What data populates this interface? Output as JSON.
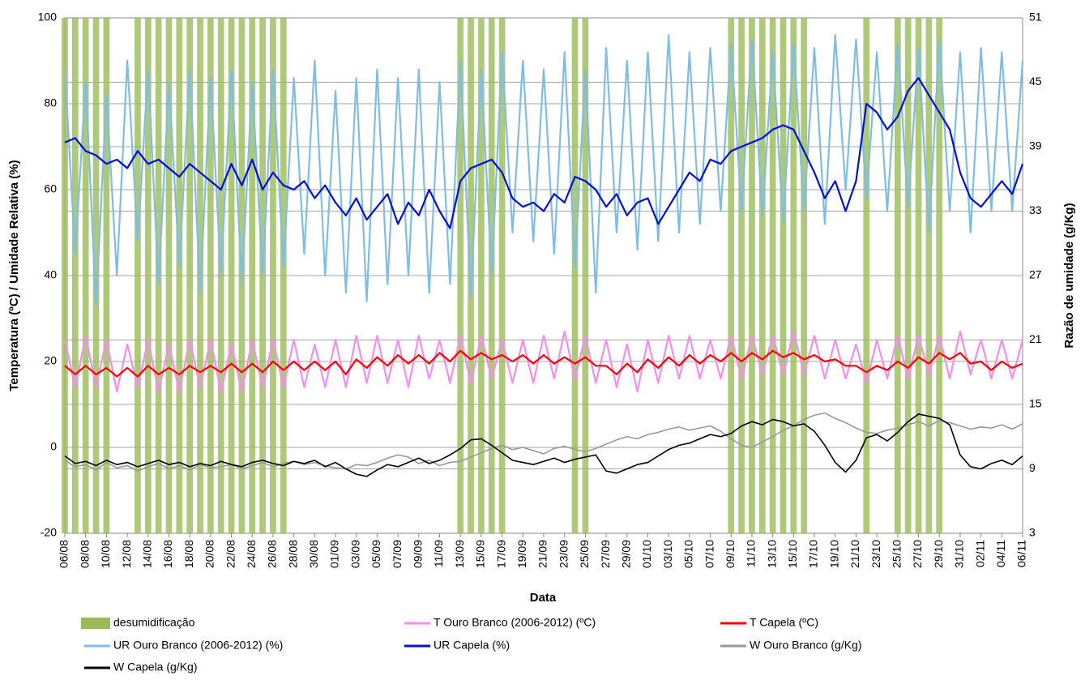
{
  "chart_data": {
    "type": "line",
    "ylabel": "Temperatura (ºC) / Umidade Relativa (%)",
    "y2label": "Razão de umidade (g/Kg)",
    "xlabel": "Data",
    "categories": [
      "06/08",
      null,
      "08/08",
      null,
      "10/08",
      null,
      "12/08",
      null,
      "14/08",
      null,
      "16/08",
      null,
      "18/08",
      null,
      "20/08",
      null,
      "22/08",
      null,
      "24/08",
      null,
      "26/08",
      null,
      "28/08",
      null,
      "30/08",
      null,
      "01/09",
      null,
      "03/09",
      null,
      "05/09",
      null,
      "07/09",
      null,
      "09/09",
      null,
      "11/09",
      null,
      "13/09",
      null,
      "15/09",
      null,
      "17/09",
      null,
      "19/09",
      null,
      "21/09",
      null,
      "23/09",
      null,
      "25/09",
      null,
      "27/09",
      null,
      "29/09",
      null,
      "01/10",
      null,
      "03/10",
      null,
      "05/10",
      null,
      "07/10",
      null,
      "09/10",
      null,
      "11/10",
      null,
      "13/10",
      null,
      "15/10",
      null,
      "17/10",
      null,
      "19/10",
      null,
      "21/10",
      null,
      "23/10",
      null,
      "25/10",
      null,
      "27/10",
      null,
      "29/10",
      null,
      "31/10",
      null,
      "02/11",
      null,
      "04/11",
      null,
      "06/11"
    ],
    "ylim": [
      -20,
      100
    ],
    "yticks": [
      -20,
      0,
      20,
      40,
      60,
      80,
      100
    ],
    "y2lim": [
      3,
      51
    ],
    "y2ticks": [
      3,
      9,
      15,
      21,
      27,
      33,
      39,
      45,
      51
    ],
    "grid": true,
    "series": [
      {
        "name": "desumidificação",
        "type": "bar",
        "color": "#9bbb59",
        "values": [
          100,
          100,
          100,
          100,
          100,
          null,
          null,
          100,
          100,
          100,
          100,
          100,
          100,
          100,
          100,
          100,
          100,
          100,
          100,
          100,
          100,
          100,
          null,
          null,
          null,
          null,
          null,
          null,
          null,
          null,
          null,
          null,
          null,
          null,
          null,
          null,
          null,
          null,
          100,
          100,
          100,
          100,
          100,
          null,
          null,
          null,
          null,
          null,
          null,
          100,
          100,
          null,
          null,
          null,
          null,
          null,
          null,
          null,
          null,
          null,
          null,
          null,
          null,
          null,
          100,
          100,
          100,
          100,
          100,
          100,
          100,
          100,
          null,
          null,
          null,
          null,
          null,
          100,
          null,
          null,
          100,
          100,
          100,
          100,
          100,
          null,
          null,
          null,
          null,
          null,
          null,
          null,
          null
        ]
      },
      {
        "name": "T Ouro Branco (2006-2012) (ºC)",
        "color": "#f58cf0",
        "values": [
          25,
          14,
          26,
          14,
          25,
          13,
          24,
          14,
          25,
          13,
          24,
          13,
          25,
          14,
          25,
          13,
          24,
          13,
          25,
          14,
          25,
          14,
          25,
          14,
          24,
          14,
          25,
          14,
          26,
          15,
          26,
          15,
          25,
          14,
          26,
          16,
          25,
          15,
          26,
          15,
          26,
          16,
          25,
          15,
          25,
          15,
          26,
          16,
          27,
          16,
          26,
          15,
          25,
          14,
          24,
          13,
          25,
          15,
          26,
          16,
          26,
          16,
          25,
          16,
          26,
          16,
          26,
          17,
          26,
          17,
          27,
          17,
          26,
          16,
          25,
          16,
          24,
          15,
          25,
          16,
          26,
          16,
          26,
          17,
          26,
          16,
          27,
          17,
          25,
          16,
          25,
          16,
          25
        ]
      },
      {
        "name": "T Capela (ºC)",
        "color": "#ff0000",
        "values": [
          19,
          17,
          19,
          17,
          18.5,
          16.5,
          18.5,
          16.5,
          19,
          17,
          18.5,
          17,
          19,
          17.5,
          19,
          17.5,
          19.5,
          17.5,
          19.5,
          17.5,
          20,
          18,
          20,
          18,
          20,
          18,
          20,
          17,
          20.5,
          18.5,
          21,
          19,
          21.5,
          19.5,
          21.5,
          19.5,
          22,
          20,
          22.5,
          20.5,
          22,
          20.5,
          21.5,
          20,
          21.5,
          19.5,
          21.5,
          19.5,
          21,
          19.5,
          21,
          19,
          19,
          17,
          19.5,
          17.5,
          20.5,
          18.5,
          21,
          19,
          21.5,
          19.5,
          21.5,
          20,
          22,
          20,
          22,
          20.5,
          22.5,
          21,
          22,
          20.5,
          21.5,
          20,
          20.5,
          19,
          19,
          17.5,
          19,
          18,
          20,
          18.5,
          21,
          19.5,
          22,
          20.5,
          22,
          19.5,
          20,
          18,
          20,
          18.5,
          19.5
        ]
      },
      {
        "name": "UR Ouro Branco (2006-2012) (%)",
        "color": "#7fbde6",
        "values": [
          88,
          45,
          85,
          33,
          82,
          40,
          90,
          48,
          88,
          38,
          85,
          42,
          88,
          36,
          86,
          40,
          88,
          38,
          85,
          40,
          88,
          42,
          86,
          45,
          90,
          40,
          83,
          36,
          86,
          34,
          88,
          38,
          86,
          40,
          88,
          36,
          85,
          38,
          90,
          35,
          88,
          40,
          92,
          50,
          90,
          48,
          88,
          45,
          92,
          42,
          88,
          36,
          93,
          50,
          90,
          46,
          92,
          48,
          96,
          50,
          92,
          52,
          93,
          55,
          94,
          55,
          95,
          54,
          92,
          52,
          94,
          55,
          93,
          52,
          96,
          60,
          95,
          58,
          92,
          55,
          94,
          56,
          93,
          50,
          95,
          55,
          92,
          50,
          93,
          55,
          92,
          55,
          90
        ]
      },
      {
        "name": "UR Capela (%)",
        "color": "#0010d8",
        "values": [
          71,
          72,
          69,
          68,
          66,
          67,
          65,
          69,
          66,
          67,
          65,
          63,
          66,
          64,
          62,
          60,
          66,
          61,
          67,
          60,
          64,
          61,
          60,
          62,
          58,
          61,
          57,
          54,
          58,
          53,
          56,
          59,
          52,
          57,
          54,
          60,
          55,
          51,
          62,
          65,
          66,
          67,
          64,
          58,
          56,
          57,
          55,
          59,
          57,
          63,
          62,
          60,
          56,
          59,
          54,
          57,
          58,
          52,
          56,
          60,
          64,
          62,
          67,
          66,
          69,
          70,
          71,
          72,
          74,
          75,
          74,
          69,
          64,
          58,
          62,
          55,
          62,
          80,
          78,
          74,
          77,
          83,
          86,
          82,
          78,
          74,
          64,
          58,
          56,
          59,
          62,
          59,
          66
        ]
      },
      {
        "name": "W Ouro Branco (g/Kg)",
        "axis": "y2",
        "color": "#999999",
        "values": [
          9.8,
          9.2,
          9.4,
          8.9,
          9.6,
          9.1,
          9.3,
          8.8,
          9.2,
          9.5,
          9.0,
          9.3,
          8.9,
          9.4,
          9.1,
          9.2,
          9.4,
          9.0,
          9.3,
          9.6,
          9.2,
          9.5,
          9.7,
          9.4,
          9.6,
          9.3,
          9.1,
          9.0,
          9.4,
          9.3,
          9.6,
          10.0,
          10.3,
          10.1,
          9.5,
          9.8,
          9.3,
          9.6,
          9.7,
          10.1,
          10.5,
          10.9,
          11.2,
          10.8,
          11.0,
          10.7,
          10.4,
          10.9,
          11.1,
          10.8,
          10.6,
          10.9,
          11.3,
          11.7,
          12.0,
          11.8,
          12.2,
          12.4,
          12.7,
          12.9,
          12.6,
          12.8,
          13.0,
          12.5,
          11.8,
          11.2,
          11.0,
          11.5,
          12.0,
          12.6,
          13.0,
          13.6,
          14.0,
          14.2,
          13.7,
          13.3,
          12.8,
          12.4,
          12.3,
          12.6,
          12.8,
          13.1,
          13.4,
          13.0,
          13.5,
          13.3,
          13.0,
          12.7,
          12.9,
          12.8,
          13.1,
          12.7,
          13.2
        ]
      },
      {
        "name": "W Capela (g/Kg)",
        "axis": "y2",
        "color": "#000000",
        "values": [
          10.2,
          9.5,
          9.7,
          9.3,
          9.8,
          9.4,
          9.6,
          9.2,
          9.5,
          9.8,
          9.4,
          9.6,
          9.2,
          9.5,
          9.3,
          9.7,
          9.4,
          9.2,
          9.6,
          9.8,
          9.5,
          9.3,
          9.7,
          9.5,
          9.8,
          9.2,
          9.6,
          9.0,
          8.5,
          8.3,
          8.9,
          9.4,
          9.2,
          9.6,
          10.0,
          9.5,
          9.8,
          10.3,
          10.9,
          11.7,
          11.8,
          11.2,
          10.5,
          9.8,
          9.6,
          9.4,
          9.7,
          10.0,
          9.6,
          9.9,
          10.1,
          10.3,
          8.8,
          8.6,
          9.0,
          9.4,
          9.6,
          10.2,
          10.8,
          11.2,
          11.4,
          11.8,
          12.2,
          12.0,
          12.3,
          13.0,
          13.4,
          13.1,
          13.6,
          13.4,
          13.0,
          13.2,
          12.5,
          11.2,
          9.6,
          8.7,
          9.8,
          11.9,
          12.2,
          11.6,
          12.4,
          13.4,
          14.1,
          13.9,
          13.7,
          13.1,
          10.3,
          9.2,
          9.0,
          9.5,
          9.8,
          9.4,
          10.2
        ]
      }
    ]
  }
}
